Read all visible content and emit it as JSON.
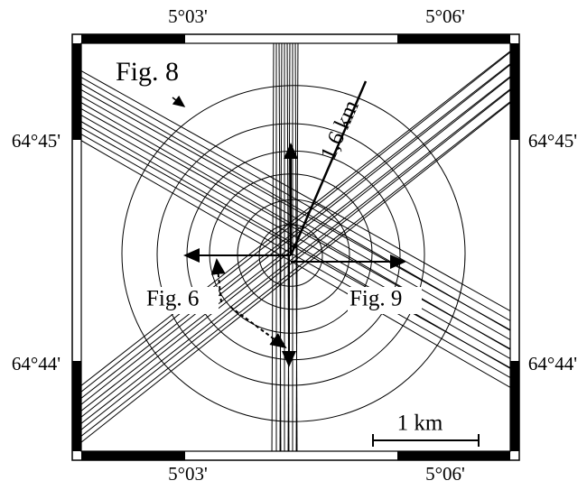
{
  "map": {
    "top_labels": [
      "5°03'",
      "5°06'"
    ],
    "bottom_labels": [
      "5°03'",
      "5°06'"
    ],
    "left_labels": [
      "64°45'",
      "64°44'"
    ],
    "right_labels": [
      "64°45'",
      "64°44'"
    ],
    "annotations": {
      "fig8": "Fig. 8",
      "fig6": "Fig. 6",
      "fig9": "Fig. 9",
      "radius": "1,6 km"
    },
    "scale_bar": "1 km"
  }
}
